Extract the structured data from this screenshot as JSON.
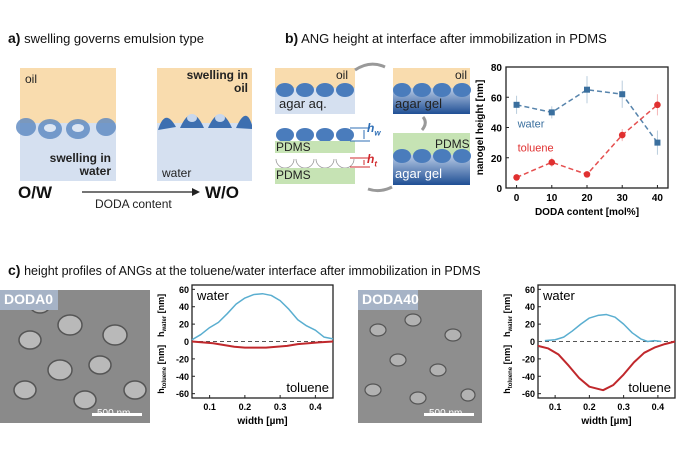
{
  "panel_a": {
    "letter": "a)",
    "title": "swelling governs emulsion type",
    "left_box": {
      "top": "oil",
      "bottom": "swelling in water"
    },
    "right_box": {
      "top": "swelling in oil",
      "bottom": "water"
    },
    "left_type": "O/W",
    "right_type": "W/O",
    "arrow_label": "DODA content",
    "colors": {
      "oil": "#f9dcae",
      "water": "#d5e0f0",
      "nanogel": "#3d6fb0"
    }
  },
  "panel_b": {
    "letter": "b)",
    "title": "ANG height at interface after immobilization in PDMS",
    "schematic": {
      "oil_top": "oil",
      "agar_aq": "agar aq.",
      "agar_gel_1": "agar gel",
      "oil_right": "oil",
      "pdms_right": "PDMS",
      "agar_gel_2": "agar gel",
      "pdms_w": "PDMS",
      "pdms_t": "PDMS",
      "h_w": "h",
      "h_w_sub": "w",
      "h_t": "h",
      "h_t_sub": "t",
      "colors": {
        "pdms": "#c6e3b4",
        "agar_gel": "#2f5d9e",
        "h_w": "#2f6fb6",
        "h_t": "#d0282c"
      }
    }
  },
  "panel_c": {
    "letter": "c)",
    "title": "height profiles of ANGs at the toluene/water interface after immobilization in PDMS",
    "sem_1": {
      "label": "DODA0",
      "scale_bar": "500 nm"
    },
    "sem_2": {
      "label": "DODA40",
      "scale_bar": "500 nm"
    }
  },
  "chart_data": [
    {
      "type": "line",
      "xlabel": "DODA content [mol%]",
      "ylabel": "nanogel height [nm]",
      "xlim": [
        -3,
        43
      ],
      "ylim": [
        0,
        80
      ],
      "xticks": [
        0,
        10,
        20,
        30,
        40
      ],
      "yticks": [
        0,
        20,
        40,
        60,
        80
      ],
      "series": [
        {
          "name": "water",
          "color": "#3a6f9e",
          "marker": "square",
          "x": [
            0,
            10,
            20,
            30,
            40
          ],
          "y": [
            55,
            50,
            65,
            62,
            30
          ],
          "err": [
            6,
            4,
            9,
            9,
            8
          ]
        },
        {
          "name": "toluene",
          "color": "#e03030",
          "marker": "circle",
          "x": [
            0,
            10,
            20,
            30,
            40
          ],
          "y": [
            7,
            17,
            9,
            35,
            55
          ],
          "err": [
            1,
            3,
            1,
            4,
            7
          ]
        }
      ]
    },
    {
      "type": "line",
      "xlabel": "width [µm]",
      "ylabel_top": "h",
      "ylabel_top_sub": "water",
      "ylabel_top_unit": " [nm]",
      "ylabel_bottom": "h",
      "ylabel_bottom_sub": "toluene",
      "ylabel_bottom_unit": " [nm]",
      "xlim": [
        0.05,
        0.45
      ],
      "ylim": [
        -65,
        65
      ],
      "xticks": [
        "0.1",
        "0.2",
        "0.3",
        "0.4"
      ],
      "yticks": [
        -60,
        -40,
        -20,
        0,
        20,
        40,
        60
      ],
      "series": [
        {
          "name": "water",
          "color": "#5aaed0",
          "x": [
            0.05,
            0.075,
            0.1,
            0.125,
            0.15,
            0.175,
            0.2,
            0.225,
            0.25,
            0.275,
            0.3,
            0.325,
            0.35,
            0.375,
            0.4,
            0.425,
            0.45
          ],
          "y": [
            2,
            8,
            16,
            22,
            32,
            43,
            50,
            54,
            55,
            53,
            47,
            37,
            25,
            18,
            13,
            5,
            3
          ]
        },
        {
          "name": "toluene",
          "color": "#c0282c",
          "x": [
            0.05,
            0.08,
            0.11,
            0.14,
            0.17,
            0.2,
            0.23,
            0.26,
            0.29,
            0.32,
            0.35,
            0.38,
            0.41,
            0.45
          ],
          "y": [
            0,
            -1,
            -2,
            -4,
            -6,
            -7,
            -7,
            -7,
            -6,
            -5,
            -3,
            -2,
            -1,
            0
          ]
        }
      ]
    },
    {
      "type": "line",
      "xlabel": "width [µm]",
      "ylabel_top": "h",
      "ylabel_top_sub": "water",
      "ylabel_top_unit": " [nm]",
      "ylabel_bottom": "h",
      "ylabel_bottom_sub": "toluene",
      "ylabel_bottom_unit": " [nm]",
      "xlim": [
        0.05,
        0.45
      ],
      "ylim": [
        -65,
        65
      ],
      "xticks": [
        "0.1",
        "0.2",
        "0.3",
        "0.4"
      ],
      "yticks": [
        -60,
        -40,
        -20,
        0,
        20,
        40,
        60
      ],
      "series": [
        {
          "name": "water",
          "color": "#5aaed0",
          "x": [
            0.07,
            0.1,
            0.125,
            0.15,
            0.175,
            0.2,
            0.225,
            0.25,
            0.275,
            0.3,
            0.325,
            0.35,
            0.37,
            0.39,
            0.41
          ],
          "y": [
            1,
            2,
            5,
            12,
            20,
            27,
            30,
            31,
            28,
            20,
            10,
            3,
            0,
            1,
            0
          ]
        },
        {
          "name": "toluene",
          "color": "#c0282c",
          "x": [
            0.05,
            0.08,
            0.11,
            0.14,
            0.17,
            0.2,
            0.24,
            0.27,
            0.3,
            0.33,
            0.36,
            0.39,
            0.42,
            0.45
          ],
          "y": [
            -5,
            -8,
            -15,
            -28,
            -42,
            -52,
            -56,
            -50,
            -38,
            -24,
            -13,
            -7,
            -3,
            0
          ]
        }
      ]
    }
  ]
}
